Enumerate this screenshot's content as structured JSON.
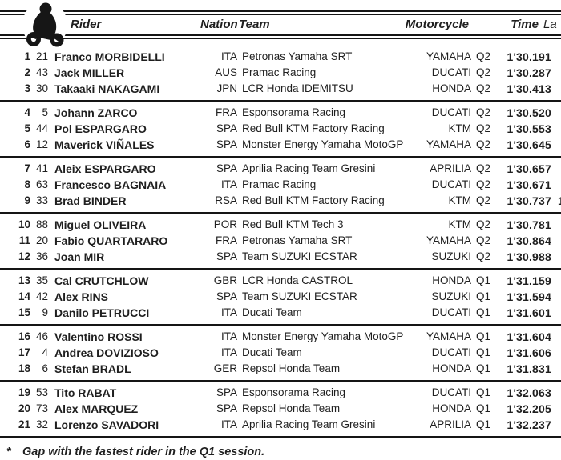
{
  "colors": {
    "text": "#1f1f1f",
    "rule": "#151515",
    "background": "#ffffff"
  },
  "header": {
    "icon": "motorcycle-rider-icon",
    "rider": "Rider",
    "nation": "Nation",
    "team": "Team",
    "motorcycle": "Motorcycle",
    "time": "Time",
    "lap": "La"
  },
  "rows": [
    {
      "pos": "1",
      "num": "21",
      "name": "Franco MORBIDELLI",
      "nation": "ITA",
      "team": "Petronas Yamaha SRT",
      "bike": "YAMAHA",
      "session": "Q2",
      "time": "1'30.191",
      "mark": ""
    },
    {
      "pos": "2",
      "num": "43",
      "name": "Jack MILLER",
      "nation": "AUS",
      "team": "Pramac Racing",
      "bike": "DUCATI",
      "session": "Q2",
      "time": "1'30.287",
      "mark": ""
    },
    {
      "pos": "3",
      "num": "30",
      "name": "Takaaki NAKAGAMI",
      "nation": "JPN",
      "team": "LCR Honda IDEMITSU",
      "bike": "HONDA",
      "session": "Q2",
      "time": "1'30.413",
      "mark": ""
    },
    {
      "pos": "4",
      "num": "5",
      "name": "Johann ZARCO",
      "nation": "FRA",
      "team": "Esponsorama Racing",
      "bike": "DUCATI",
      "session": "Q2",
      "time": "1'30.520",
      "mark": ""
    },
    {
      "pos": "5",
      "num": "44",
      "name": "Pol ESPARGARO",
      "nation": "SPA",
      "team": "Red Bull KTM Factory Racing",
      "bike": "KTM",
      "session": "Q2",
      "time": "1'30.553",
      "mark": ""
    },
    {
      "pos": "6",
      "num": "12",
      "name": "Maverick VIÑALES",
      "nation": "SPA",
      "team": "Monster Energy Yamaha MotoGP",
      "bike": "YAMAHA",
      "session": "Q2",
      "time": "1'30.645",
      "mark": ""
    },
    {
      "pos": "7",
      "num": "41",
      "name": "Aleix ESPARGARO",
      "nation": "SPA",
      "team": "Aprilia Racing Team Gresini",
      "bike": "APRILIA",
      "session": "Q2",
      "time": "1'30.657",
      "mark": ""
    },
    {
      "pos": "8",
      "num": "63",
      "name": "Francesco BAGNAIA",
      "nation": "ITA",
      "team": "Pramac Racing",
      "bike": "DUCATI",
      "session": "Q2",
      "time": "1'30.671",
      "mark": ""
    },
    {
      "pos": "9",
      "num": "33",
      "name": "Brad BINDER",
      "nation": "RSA",
      "team": "Red Bull KTM Factory Racing",
      "bike": "KTM",
      "session": "Q2",
      "time": "1'30.737",
      "mark": "1"
    },
    {
      "pos": "10",
      "num": "88",
      "name": "Miguel OLIVEIRA",
      "nation": "POR",
      "team": "Red Bull KTM Tech 3",
      "bike": "KTM",
      "session": "Q2",
      "time": "1'30.781",
      "mark": ""
    },
    {
      "pos": "11",
      "num": "20",
      "name": "Fabio QUARTARARO",
      "nation": "FRA",
      "team": "Petronas Yamaha SRT",
      "bike": "YAMAHA",
      "session": "Q2",
      "time": "1'30.864",
      "mark": ""
    },
    {
      "pos": "12",
      "num": "36",
      "name": "Joan MIR",
      "nation": "SPA",
      "team": "Team SUZUKI ECSTAR",
      "bike": "SUZUKI",
      "session": "Q2",
      "time": "1'30.988",
      "mark": ""
    },
    {
      "pos": "13",
      "num": "35",
      "name": "Cal CRUTCHLOW",
      "nation": "GBR",
      "team": "LCR Honda CASTROL",
      "bike": "HONDA",
      "session": "Q1",
      "time": "1'31.159",
      "mark": ""
    },
    {
      "pos": "14",
      "num": "42",
      "name": "Alex RINS",
      "nation": "SPA",
      "team": "Team SUZUKI ECSTAR",
      "bike": "SUZUKI",
      "session": "Q1",
      "time": "1'31.594",
      "mark": ""
    },
    {
      "pos": "15",
      "num": "9",
      "name": "Danilo PETRUCCI",
      "nation": "ITA",
      "team": "Ducati Team",
      "bike": "DUCATI",
      "session": "Q1",
      "time": "1'31.601",
      "mark": ""
    },
    {
      "pos": "16",
      "num": "46",
      "name": "Valentino ROSSI",
      "nation": "ITA",
      "team": "Monster Energy Yamaha MotoGP",
      "bike": "YAMAHA",
      "session": "Q1",
      "time": "1'31.604",
      "mark": ""
    },
    {
      "pos": "17",
      "num": "4",
      "name": "Andrea DOVIZIOSO",
      "nation": "ITA",
      "team": "Ducati Team",
      "bike": "DUCATI",
      "session": "Q1",
      "time": "1'31.606",
      "mark": ""
    },
    {
      "pos": "18",
      "num": "6",
      "name": "Stefan BRADL",
      "nation": "GER",
      "team": "Repsol Honda Team",
      "bike": "HONDA",
      "session": "Q1",
      "time": "1'31.831",
      "mark": ""
    },
    {
      "pos": "19",
      "num": "53",
      "name": "Tito RABAT",
      "nation": "SPA",
      "team": "Esponsorama Racing",
      "bike": "DUCATI",
      "session": "Q1",
      "time": "1'32.063",
      "mark": ""
    },
    {
      "pos": "20",
      "num": "73",
      "name": "Alex MARQUEZ",
      "nation": "SPA",
      "team": "Repsol Honda Team",
      "bike": "HONDA",
      "session": "Q1",
      "time": "1'32.205",
      "mark": ""
    },
    {
      "pos": "21",
      "num": "32",
      "name": "Lorenzo SAVADORI",
      "nation": "ITA",
      "team": "Aprilia Racing Team Gresini",
      "bike": "APRILIA",
      "session": "Q1",
      "time": "1'32.237",
      "mark": ""
    }
  ],
  "footer": {
    "marker": "*",
    "note": "Gap with the fastest rider in the Q1 session."
  }
}
